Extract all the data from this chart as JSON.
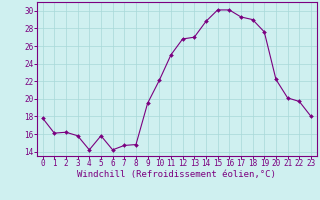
{
  "x": [
    0,
    1,
    2,
    3,
    4,
    5,
    6,
    7,
    8,
    9,
    10,
    11,
    12,
    13,
    14,
    15,
    16,
    17,
    18,
    19,
    20,
    21,
    22,
    23
  ],
  "y": [
    17.8,
    16.1,
    16.2,
    15.8,
    14.2,
    15.8,
    14.2,
    14.7,
    14.8,
    19.5,
    22.1,
    25.0,
    26.8,
    27.0,
    28.8,
    30.1,
    30.1,
    29.3,
    29.0,
    27.6,
    22.2,
    20.1,
    19.7,
    18.0
  ],
  "line_color": "#7b0080",
  "marker": "D",
  "marker_size": 2.0,
  "bg_color": "#cff0f0",
  "grid_color": "#a8d8d8",
  "tick_color": "#7b0080",
  "xlabel": "Windchill (Refroidissement éolien,°C)",
  "xlabel_color": "#7b0080",
  "ylim": [
    13.5,
    31.0
  ],
  "yticks": [
    14,
    16,
    18,
    20,
    22,
    24,
    26,
    28,
    30
  ],
  "xticks": [
    0,
    1,
    2,
    3,
    4,
    5,
    6,
    7,
    8,
    9,
    10,
    11,
    12,
    13,
    14,
    15,
    16,
    17,
    18,
    19,
    20,
    21,
    22,
    23
  ],
  "label_fontsize": 6.5,
  "tick_fontsize": 5.5
}
